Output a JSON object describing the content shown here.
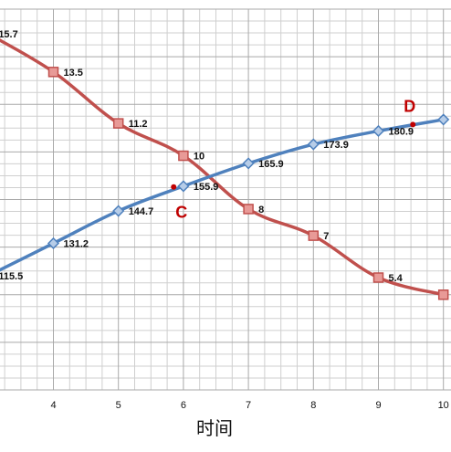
{
  "chart_data": {
    "type": "line",
    "xlabel": "时间",
    "ylabel": "",
    "title": "",
    "x_ticks": [
      4,
      5,
      6,
      7,
      8,
      9,
      10
    ],
    "xlim": [
      3.15,
      10.2
    ],
    "ylim": [
      0,
      100
    ],
    "grid": true,
    "series": [
      {
        "color": "#c0504d",
        "marker": "square",
        "points": [
          {
            "x": 3.0,
            "y": 93.5,
            "label": "15.7"
          },
          {
            "x": 4.0,
            "y": 83.5,
            "label": "13.5"
          },
          {
            "x": 5.0,
            "y": 70.0,
            "label": "11.2"
          },
          {
            "x": 6.0,
            "y": 61.5,
            "label": "10"
          },
          {
            "x": 7.0,
            "y": 47.5,
            "label": "8"
          },
          {
            "x": 8.0,
            "y": 40.5,
            "label": "7"
          },
          {
            "x": 9.0,
            "y": 29.5,
            "label": "5.4"
          },
          {
            "x": 10.0,
            "y": 25.0,
            "label": ""
          }
        ]
      },
      {
        "color": "#4f81bd",
        "marker": "diamond",
        "points": [
          {
            "x": 3.0,
            "y": 30.0,
            "label": "115.5"
          },
          {
            "x": 4.0,
            "y": 38.5,
            "label": "131.2"
          },
          {
            "x": 5.0,
            "y": 47.0,
            "label": "144.7"
          },
          {
            "x": 6.0,
            "y": 53.5,
            "label": "155.9"
          },
          {
            "x": 7.0,
            "y": 59.5,
            "label": "165.9"
          },
          {
            "x": 8.0,
            "y": 64.5,
            "label": "173.9"
          },
          {
            "x": 9.0,
            "y": 68.0,
            "label": "180.9"
          },
          {
            "x": 10.0,
            "y": 71.0,
            "label": ""
          }
        ]
      }
    ],
    "annotations": [
      {
        "text": "C",
        "x": 5.85,
        "y": 53.3,
        "color": "#c00000"
      },
      {
        "text": "D",
        "x": 9.53,
        "y": 69.7,
        "color": "#c00000"
      }
    ]
  }
}
